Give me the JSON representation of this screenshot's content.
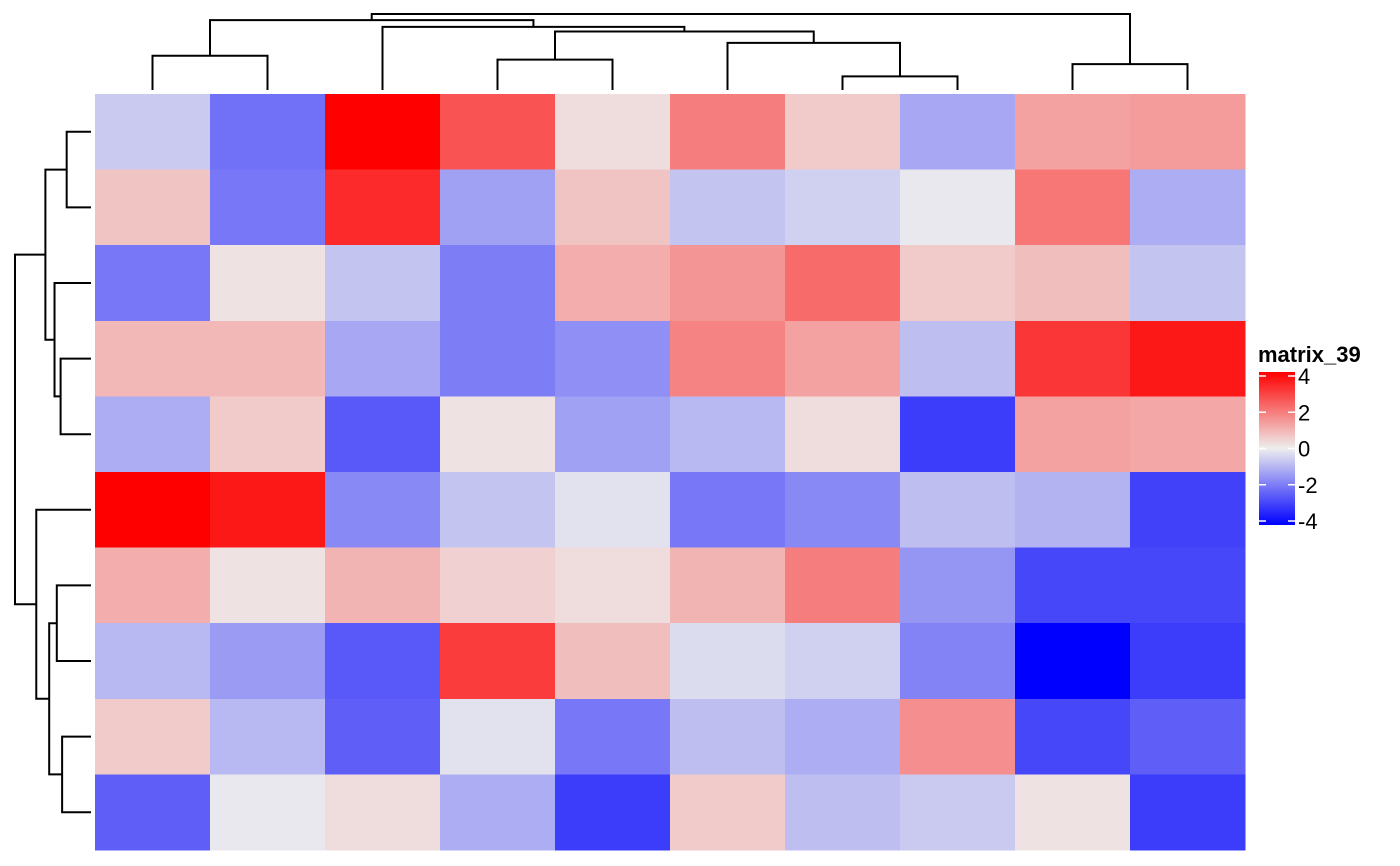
{
  "chart_data": {
    "type": "heatmap",
    "title": "",
    "rows": 10,
    "cols": 10,
    "values": [
      [
        -0.6,
        -2.1,
        4.0,
        2.6,
        0.3,
        1.9,
        0.6,
        -1.2,
        1.3,
        1.4
      ],
      [
        0.7,
        -2.0,
        3.3,
        -1.3,
        0.7,
        -0.7,
        -0.5,
        -0.1,
        2.0,
        -1.1
      ],
      [
        -2.0,
        0.2,
        -0.7,
        -1.9,
        1.1,
        1.5,
        2.2,
        0.6,
        0.8,
        -0.7
      ],
      [
        0.9,
        0.9,
        -1.2,
        -1.9,
        -1.6,
        1.8,
        1.3,
        -0.8,
        3.1,
        3.6
      ],
      [
        -1.1,
        0.6,
        -2.5,
        0.2,
        -1.3,
        -0.9,
        0.3,
        -3.0,
        1.3,
        1.2
      ],
      [
        4.0,
        3.6,
        -1.7,
        -0.7,
        -0.2,
        -2.0,
        -1.7,
        -0.8,
        -1.0,
        -2.9
      ],
      [
        1.1,
        0.2,
        1.0,
        0.5,
        0.3,
        1.0,
        1.9,
        -1.5,
        -2.8,
        -2.8
      ],
      [
        -0.9,
        -1.4,
        -2.5,
        3.0,
        0.8,
        -0.3,
        -0.5,
        -1.8,
        -4.2,
        -3.0
      ],
      [
        0.6,
        -0.9,
        -2.4,
        -0.2,
        -2.0,
        -0.8,
        -1.1,
        1.6,
        -2.8,
        -2.4
      ],
      [
        -2.4,
        -0.1,
        0.3,
        -1.1,
        -3.0,
        0.6,
        -0.8,
        -0.6,
        0.2,
        -3.0
      ]
    ],
    "color_scale": {
      "min": -4,
      "max": 4,
      "low_color": "#0000FF",
      "mid_color": "#EEEEEE",
      "high_color": "#FF0000"
    },
    "col_dendrogram": {
      "merges": [
        [
          6,
          7,
          0.18
        ],
        [
          8,
          9,
          0.34
        ],
        [
          0,
          1,
          0.45
        ],
        [
          3,
          4,
          0.4
        ],
        [
          5,
          6,
          0.62
        ],
        [
          3,
          5,
          0.77
        ],
        [
          2,
          3,
          0.83
        ],
        [
          0,
          2,
          0.92
        ],
        [
          0,
          8,
          1.0
        ]
      ]
    },
    "row_dendrogram": {
      "merges": [
        [
          0,
          1,
          0.32
        ],
        [
          3,
          4,
          0.4
        ],
        [
          8,
          9,
          0.38
        ],
        [
          2,
          3,
          0.48
        ],
        [
          6,
          7,
          0.45
        ],
        [
          0,
          2,
          0.6
        ],
        [
          6,
          8,
          0.55
        ],
        [
          5,
          6,
          0.72
        ],
        [
          0,
          5,
          1.0
        ]
      ]
    },
    "legend": {
      "title": "matrix_39",
      "ticks": [
        4,
        2,
        0,
        -2,
        -4
      ],
      "tick_labels": [
        "4",
        "2",
        "0",
        "-2",
        "-4"
      ],
      "position": "right"
    }
  }
}
